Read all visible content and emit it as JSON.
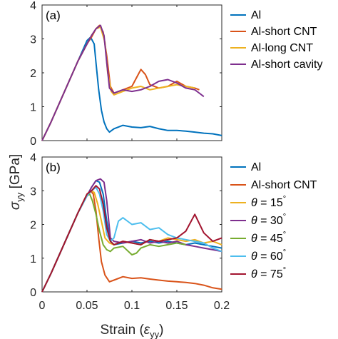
{
  "figure": {
    "ylabel_main": "σ",
    "ylabel_sub": "yy",
    "ylabel_units": " [GPa]",
    "xlabel_main": "Strain (",
    "xlabel_sym": "ε",
    "xlabel_sub": "yy",
    "xlabel_close": ")"
  },
  "chart_data": [
    {
      "panel": "(a)",
      "type": "line",
      "xlim": [
        0,
        0.2
      ],
      "ylim": [
        0,
        4
      ],
      "xticks": [
        "0",
        "0.05",
        "0.1",
        "0.15",
        "0.2"
      ],
      "yticks": [
        "0",
        "1",
        "2",
        "3",
        "4"
      ],
      "legend_position": "outside-right",
      "series": [
        {
          "name": "Al",
          "color": "#0072BD",
          "x": [
            0,
            0.01,
            0.02,
            0.03,
            0.04,
            0.05,
            0.054,
            0.058,
            0.06,
            0.063,
            0.066,
            0.069,
            0.072,
            0.075,
            0.08,
            0.09,
            0.1,
            0.11,
            0.12,
            0.13,
            0.14,
            0.15,
            0.16,
            0.17,
            0.18,
            0.19,
            0.2
          ],
          "y": [
            0,
            0.55,
            1.15,
            1.75,
            2.35,
            2.95,
            3.05,
            2.85,
            2.3,
            1.5,
            0.9,
            0.55,
            0.35,
            0.25,
            0.35,
            0.45,
            0.4,
            0.38,
            0.42,
            0.35,
            0.3,
            0.3,
            0.28,
            0.25,
            0.22,
            0.2,
            0.15
          ]
        },
        {
          "name": "Al-short CNT",
          "color": "#D95319",
          "x": [
            0,
            0.01,
            0.02,
            0.03,
            0.04,
            0.05,
            0.055,
            0.06,
            0.064,
            0.068,
            0.072,
            0.076,
            0.08,
            0.09,
            0.1,
            0.105,
            0.11,
            0.115,
            0.12,
            0.13,
            0.14,
            0.15,
            0.16,
            0.17,
            0.175
          ],
          "y": [
            0,
            0.55,
            1.15,
            1.75,
            2.35,
            2.85,
            3.05,
            3.3,
            3.4,
            3.2,
            2.5,
            1.6,
            1.4,
            1.5,
            1.6,
            1.85,
            2.1,
            1.95,
            1.65,
            1.55,
            1.6,
            1.75,
            1.6,
            1.55,
            1.5
          ]
        },
        {
          "name": "Al-long CNT",
          "color": "#EDB120",
          "x": [
            0,
            0.01,
            0.02,
            0.03,
            0.04,
            0.05,
            0.055,
            0.06,
            0.065,
            0.07,
            0.073,
            0.077,
            0.08,
            0.09,
            0.1,
            0.11,
            0.12,
            0.13,
            0.14,
            0.15,
            0.16,
            0.17
          ],
          "y": [
            0,
            0.55,
            1.15,
            1.75,
            2.35,
            2.85,
            3.1,
            3.3,
            3.35,
            2.9,
            2.0,
            1.45,
            1.35,
            1.45,
            1.55,
            1.6,
            1.5,
            1.55,
            1.6,
            1.65,
            1.6,
            1.55
          ]
        },
        {
          "name": "Al-short cavity",
          "color": "#7E2F8E",
          "x": [
            0,
            0.01,
            0.02,
            0.03,
            0.04,
            0.05,
            0.055,
            0.06,
            0.065,
            0.069,
            0.072,
            0.075,
            0.08,
            0.09,
            0.1,
            0.11,
            0.12,
            0.13,
            0.14,
            0.15,
            0.16,
            0.17,
            0.175,
            0.18
          ],
          "y": [
            0,
            0.55,
            1.15,
            1.75,
            2.35,
            2.85,
            3.1,
            3.3,
            3.4,
            3.1,
            2.3,
            1.55,
            1.4,
            1.5,
            1.45,
            1.5,
            1.6,
            1.75,
            1.8,
            1.7,
            1.55,
            1.5,
            1.4,
            1.3
          ]
        }
      ]
    },
    {
      "panel": "(b)",
      "type": "line",
      "xlim": [
        0,
        0.2
      ],
      "ylim": [
        0,
        4
      ],
      "xticks": [
        "0",
        "0.05",
        "0.1",
        "0.15",
        "0.2"
      ],
      "yticks": [
        "0",
        "1",
        "2",
        "3",
        "4"
      ],
      "legend_position": "outside-right",
      "series": [
        {
          "name": "Al",
          "color": "#0072BD",
          "x": [
            0,
            0.01,
            0.02,
            0.03,
            0.04,
            0.05,
            0.055,
            0.06,
            0.064,
            0.068,
            0.072,
            0.076,
            0.08,
            0.09,
            0.1,
            0.11,
            0.12,
            0.13,
            0.14,
            0.15,
            0.16,
            0.17,
            0.18,
            0.19,
            0.2
          ],
          "y": [
            0,
            0.55,
            1.15,
            1.75,
            2.35,
            2.85,
            3.1,
            3.3,
            3.25,
            2.9,
            2.1,
            1.5,
            1.4,
            1.45,
            1.5,
            1.45,
            1.5,
            1.45,
            1.5,
            1.45,
            1.4,
            1.45,
            1.4,
            1.35,
            1.3
          ]
        },
        {
          "name": "Al-short CNT",
          "color": "#D95319",
          "x": [
            0,
            0.01,
            0.02,
            0.03,
            0.04,
            0.05,
            0.054,
            0.057,
            0.06,
            0.063,
            0.066,
            0.07,
            0.075,
            0.08,
            0.09,
            0.1,
            0.11,
            0.12,
            0.13,
            0.14,
            0.15,
            0.16,
            0.17,
            0.18,
            0.19,
            0.2
          ],
          "y": [
            0,
            0.55,
            1.15,
            1.75,
            2.35,
            2.9,
            3.0,
            2.9,
            2.4,
            1.6,
            0.9,
            0.5,
            0.3,
            0.35,
            0.45,
            0.4,
            0.42,
            0.38,
            0.35,
            0.32,
            0.3,
            0.28,
            0.25,
            0.2,
            0.12,
            0.08
          ]
        },
        {
          "name": "θ = 15°",
          "color": "#EDB120",
          "x": [
            0,
            0.01,
            0.02,
            0.03,
            0.04,
            0.05,
            0.055,
            0.058,
            0.062,
            0.066,
            0.07,
            0.075,
            0.08,
            0.09,
            0.1,
            0.11,
            0.12,
            0.13,
            0.14,
            0.15,
            0.16,
            0.17,
            0.18,
            0.19,
            0.2
          ],
          "y": [
            0,
            0.55,
            1.15,
            1.75,
            2.35,
            2.9,
            3.0,
            2.95,
            2.6,
            2.1,
            1.6,
            1.45,
            1.4,
            1.5,
            1.45,
            1.4,
            1.55,
            1.5,
            1.6,
            1.55,
            1.5,
            1.55,
            1.45,
            1.5,
            1.4
          ]
        },
        {
          "name": "θ = 30°",
          "color": "#7E2F8E",
          "x": [
            0,
            0.01,
            0.02,
            0.03,
            0.04,
            0.05,
            0.055,
            0.06,
            0.065,
            0.069,
            0.072,
            0.076,
            0.08,
            0.09,
            0.1,
            0.11,
            0.12,
            0.13,
            0.14,
            0.15,
            0.16,
            0.17,
            0.18,
            0.19,
            0.2
          ],
          "y": [
            0,
            0.55,
            1.15,
            1.75,
            2.35,
            2.85,
            3.1,
            3.3,
            3.35,
            3.25,
            2.7,
            1.6,
            1.5,
            1.45,
            1.5,
            1.55,
            1.45,
            1.5,
            1.45,
            1.5,
            1.4,
            1.35,
            1.3,
            1.25,
            1.2
          ]
        },
        {
          "name": "θ = 45°",
          "color": "#77AC30",
          "x": [
            0,
            0.01,
            0.02,
            0.03,
            0.04,
            0.05,
            0.053,
            0.056,
            0.06,
            0.064,
            0.068,
            0.072,
            0.076,
            0.08,
            0.09,
            0.1,
            0.105,
            0.11,
            0.12,
            0.13,
            0.14,
            0.15,
            0.16
          ],
          "y": [
            0,
            0.55,
            1.15,
            1.75,
            2.35,
            2.85,
            2.9,
            2.7,
            2.3,
            1.8,
            1.4,
            1.25,
            1.2,
            1.3,
            1.35,
            1.1,
            1.15,
            1.3,
            1.4,
            1.35,
            1.4,
            1.45,
            1.4
          ]
        },
        {
          "name": "θ = 60°",
          "color": "#4DBEEE",
          "x": [
            0,
            0.01,
            0.02,
            0.03,
            0.04,
            0.05,
            0.055,
            0.06,
            0.064,
            0.068,
            0.072,
            0.076,
            0.08,
            0.085,
            0.09,
            0.1,
            0.11,
            0.12,
            0.13,
            0.14,
            0.15,
            0.16,
            0.17,
            0.18,
            0.19,
            0.2
          ],
          "y": [
            0,
            0.55,
            1.15,
            1.75,
            2.35,
            2.85,
            3.0,
            3.1,
            2.9,
            2.4,
            1.7,
            1.5,
            1.6,
            2.1,
            2.2,
            2.0,
            2.05,
            1.85,
            1.9,
            1.7,
            1.6,
            1.55,
            1.5,
            1.45,
            1.3,
            1.2
          ]
        },
        {
          "name": "θ = 75°",
          "color": "#A2142F",
          "x": [
            0,
            0.01,
            0.02,
            0.03,
            0.04,
            0.05,
            0.055,
            0.06,
            0.064,
            0.068,
            0.072,
            0.076,
            0.08,
            0.09,
            0.1,
            0.11,
            0.12,
            0.13,
            0.14,
            0.15,
            0.16,
            0.17,
            0.18,
            0.19,
            0.2
          ],
          "y": [
            0,
            0.55,
            1.15,
            1.75,
            2.35,
            2.9,
            3.0,
            3.15,
            3.05,
            2.6,
            1.9,
            1.5,
            1.4,
            1.5,
            1.45,
            1.4,
            1.55,
            1.5,
            1.55,
            1.6,
            1.8,
            2.3,
            1.75,
            1.5,
            1.6
          ]
        }
      ]
    }
  ]
}
